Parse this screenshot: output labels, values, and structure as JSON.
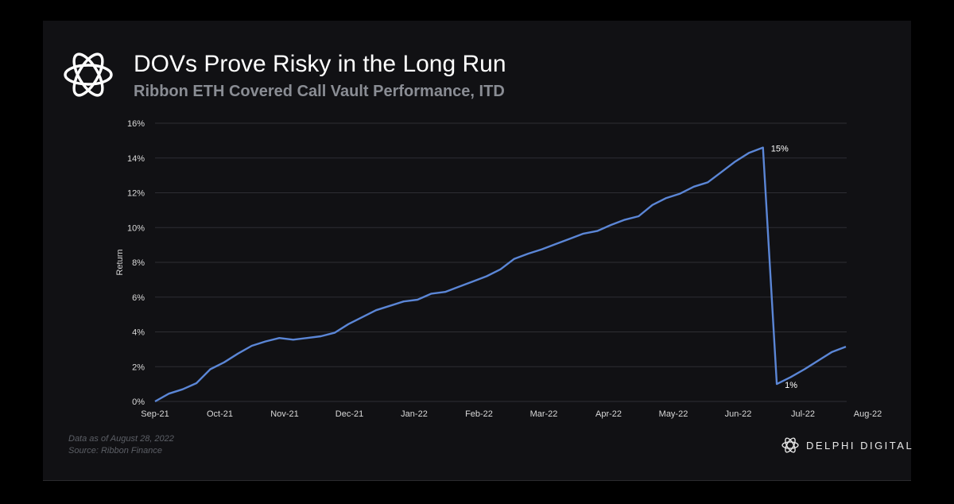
{
  "header": {
    "title": "DOVs Prove Risky in the Long Run",
    "subtitle": "Ribbon ETH Covered Call Vault Performance, ITD",
    "logo_icon": "flower-knot-icon"
  },
  "footer": {
    "note_line1": "Data as of August 28, 2022",
    "note_line2": "Source: Ribbon Finance",
    "brand": "DELPHI DIGITAL",
    "brand_icon": "flower-knot-icon"
  },
  "colors": {
    "background": "#111114",
    "line": "#5b86d6",
    "grid": "#2e2e33",
    "text": "#d9d9d9"
  },
  "chart_data": {
    "type": "line",
    "title": "",
    "xlabel": "",
    "ylabel": "Return",
    "ylim": [
      0,
      16
    ],
    "yticks": [
      0,
      2,
      4,
      6,
      8,
      10,
      12,
      14,
      16
    ],
    "ytick_labels": [
      "0%",
      "2%",
      "4%",
      "6%",
      "8%",
      "10%",
      "12%",
      "14%",
      "16%"
    ],
    "xticks": [
      "Sep-21",
      "Oct-21",
      "Nov-21",
      "Dec-21",
      "Jan-22",
      "Feb-22",
      "Mar-22",
      "Apr-22",
      "May-22",
      "Jun-22",
      "Jul-22",
      "Aug-22"
    ],
    "grid": "horizontal",
    "series": [
      {
        "values": [
          0.0,
          0.45,
          0.7,
          1.05,
          1.85,
          2.25,
          2.75,
          3.2,
          3.45,
          3.65,
          3.55,
          3.65,
          3.75,
          3.95,
          4.45,
          4.85,
          5.25,
          5.5,
          5.75,
          5.85,
          6.2,
          6.3,
          6.6,
          6.9,
          7.2,
          7.6,
          8.2,
          8.5,
          8.75,
          9.05,
          9.35,
          9.65,
          9.8,
          10.15,
          10.45,
          10.65,
          11.3,
          11.7,
          11.95,
          12.35,
          12.6,
          13.2,
          13.8,
          14.3,
          14.6,
          1.0,
          1.4,
          1.85,
          2.35,
          2.85,
          3.15
        ]
      }
    ],
    "annotations": [
      {
        "label": "15%",
        "index": 44
      },
      {
        "label": "1%",
        "index": 45
      }
    ]
  }
}
